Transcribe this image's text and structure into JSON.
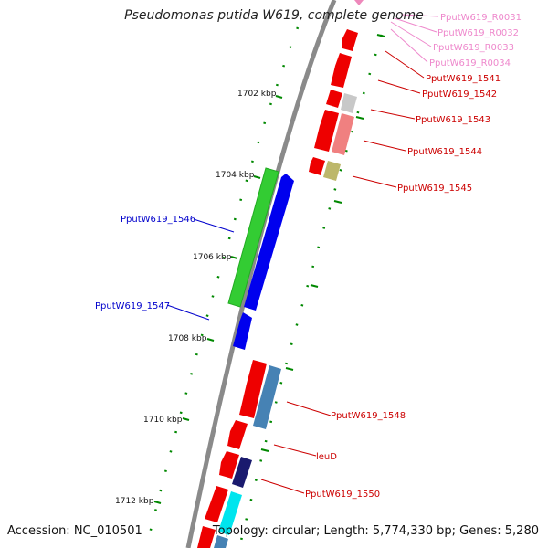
{
  "map": {
    "title": "Pseudomonas putida W619, complete genome",
    "accession_text": "Accession: NC_010501",
    "summary_text": "Topology: circular; Length: 5,774,330 bp; Genes: 5,280",
    "ticks": [
      "1702 kbp",
      "1704 kbp",
      "1706 kbp",
      "1708 kbp",
      "1710 kbp",
      "1712 kbp"
    ],
    "colors": {
      "backbone": "#8a8a8a",
      "forward_cds": "#0000ee",
      "forward_cds_alt": "#33cc33",
      "reverse_cds": "#ee0000",
      "rna": "#ee88bb",
      "tick_mark": "#008800",
      "blue_label": "#0000cc",
      "red_label": "#cc0000",
      "pink_label": "#ee88cc"
    },
    "labels_forward": [
      {
        "name": "PputW619_1546"
      },
      {
        "name": "PputW619_1547"
      }
    ],
    "labels_reverse": [
      {
        "name": "PputW619_R0031"
      },
      {
        "name": "PputW619_R0032"
      },
      {
        "name": "PputW619_R0033"
      },
      {
        "name": "PputW619_R0034"
      },
      {
        "name": "PputW619_1541"
      },
      {
        "name": "PputW619_1542"
      },
      {
        "name": "PputW619_1543"
      },
      {
        "name": "PputW619_1544"
      },
      {
        "name": "PputW619_1545"
      },
      {
        "name": "PputW619_1548"
      },
      {
        "name": "leuD"
      },
      {
        "name": "PputW619_1550"
      }
    ]
  }
}
